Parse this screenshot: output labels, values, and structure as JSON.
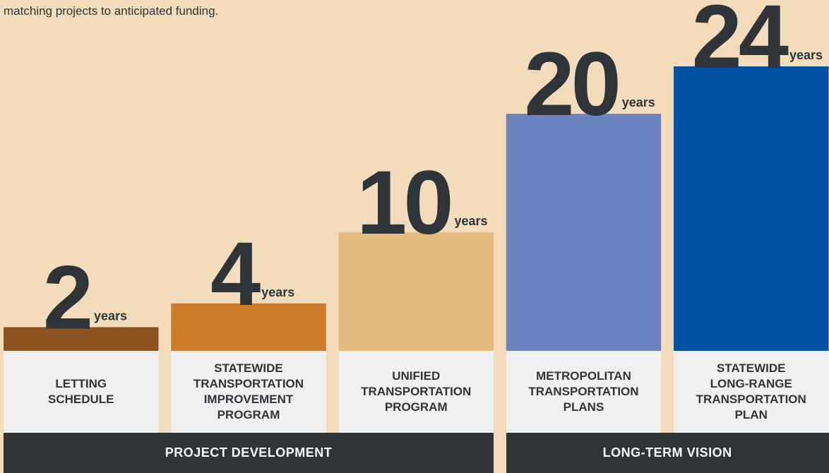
{
  "intro": "matching projects to anticipated funding.",
  "chart_data": {
    "type": "bar",
    "categories": [
      "LETTING\nSCHEDULE",
      "STATEWIDE\nTRANSPORTATION\nIMPROVEMENT\nPROGRAM",
      "UNIFIED\nTRANSPORTATION\nPROGRAM",
      "METROPOLITAN\nTRANSPORTATION\nPLANS",
      "STATEWIDE\nLONG-RANGE\nTRANSPORTATION\nPLAN"
    ],
    "values": [
      2,
      4,
      10,
      20,
      24
    ],
    "unit": "years",
    "colors": [
      "#8f5424",
      "#cd7b29",
      "#e6bc7e",
      "#6b84c0",
      "#0052a4"
    ],
    "ylim": [
      0,
      24
    ],
    "groups": [
      "PROJECT DEVELOPMENT",
      "LONG-TERM VISION"
    ]
  }
}
